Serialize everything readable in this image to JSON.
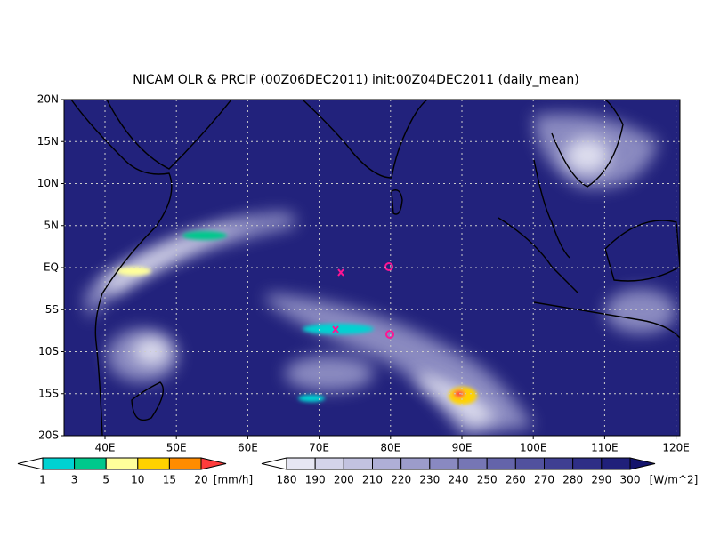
{
  "title": "NICAM OLR & PRCIP (00Z06DEC2011) init:00Z04DEC2011 (daily_mean)",
  "map": {
    "lat_labels": [
      "20N",
      "15N",
      "10N",
      "5N",
      "EQ",
      "5S",
      "10S",
      "15S",
      "20S"
    ],
    "lon_labels": [
      "40E",
      "50E",
      "60E",
      "70E",
      "80E",
      "90E",
      "100E",
      "110E",
      "120E"
    ]
  },
  "precip_colorbar": {
    "levels": [
      1,
      3,
      5,
      10,
      15,
      20
    ],
    "unit": "[mm/h]",
    "colors": [
      "#ffffff",
      "#00d2d2",
      "#00c88c",
      "#ffff9b",
      "#ffd200",
      "#ff8c00",
      "#ff3c3c"
    ]
  },
  "olr_colorbar": {
    "levels": [
      180,
      190,
      200,
      210,
      220,
      230,
      240,
      250,
      260,
      270,
      280,
      290,
      300
    ],
    "unit": "[W/m^2]",
    "colors": [
      "#ffffff",
      "#e6e6f3",
      "#d4d4ea",
      "#c2c2e0",
      "#afafd6",
      "#9c9ccb",
      "#8989c1",
      "#7676b5",
      "#6464aa",
      "#51519e",
      "#3f3f92",
      "#2e2e86",
      "#20207a",
      "#14146c"
    ]
  }
}
